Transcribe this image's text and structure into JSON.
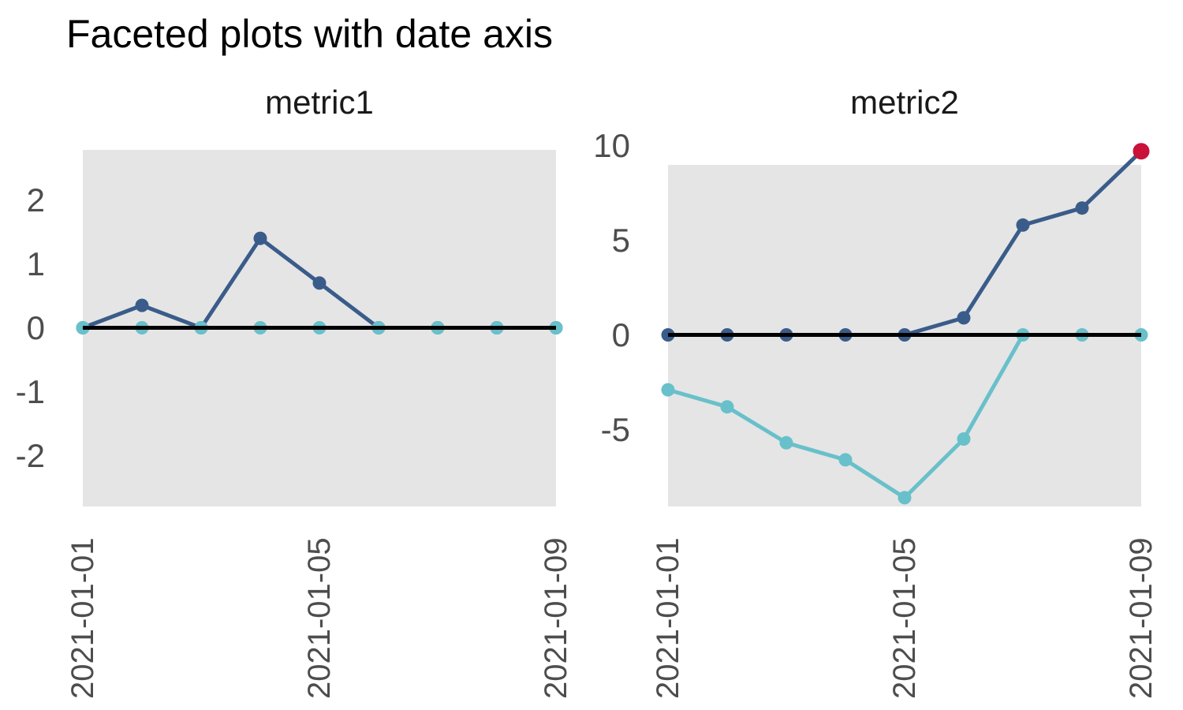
{
  "title": "Faceted plots with date axis",
  "colors": {
    "navy": "#3a5c8a",
    "teal": "#68c0ca",
    "red": "#c9113a",
    "panel_background": "#e5e5e5",
    "zero_line": "#000000",
    "axis_text": "#4d4d4d",
    "facet_title_text": "#1a1a1a",
    "title_text": "#000000",
    "figure_background": "#ffffff"
  },
  "chart_data": [
    {
      "type": "line",
      "facet": "metric1",
      "x": [
        "2021-01-01",
        "2021-01-02",
        "2021-01-03",
        "2021-01-04",
        "2021-01-05",
        "2021-01-06",
        "2021-01-07",
        "2021-01-08",
        "2021-01-09"
      ],
      "x_tick_labels": [
        "2021-01-01",
        "2021-01-05",
        "2021-01-09"
      ],
      "x_tick_indices": [
        0,
        4,
        8
      ],
      "y_ticks": [
        2,
        1,
        0,
        -1,
        -2
      ],
      "ylim": [
        -2.8,
        2.8
      ],
      "grid": false,
      "legend_position": "none",
      "zero_line": true,
      "series": [
        {
          "name": "metric1-line",
          "color_key": "navy",
          "values": [
            0,
            0.35,
            0,
            1.4,
            0.7,
            0,
            0,
            0,
            0
          ]
        },
        {
          "name": "metric1-baseline-points",
          "color_key": "teal",
          "values": [
            0,
            0,
            0,
            0,
            0,
            0,
            0,
            0,
            0
          ]
        }
      ]
    },
    {
      "type": "line",
      "facet": "metric2",
      "x": [
        "2021-01-01",
        "2021-01-02",
        "2021-01-03",
        "2021-01-04",
        "2021-01-05",
        "2021-01-06",
        "2021-01-07",
        "2021-01-08",
        "2021-01-09"
      ],
      "x_tick_labels": [
        "2021-01-01",
        "2021-01-05",
        "2021-01-09"
      ],
      "x_tick_indices": [
        0,
        4,
        8
      ],
      "y_ticks": [
        10,
        5,
        0,
        -5
      ],
      "ylim": [
        -8.96,
        8.96
      ],
      "grid": false,
      "legend_position": "none",
      "zero_line": true,
      "series": [
        {
          "name": "metric2-positive-line",
          "color_key": "navy",
          "values": [
            0,
            0,
            0,
            0,
            0,
            0.9,
            5.8,
            6.7,
            9.7
          ],
          "highlight_last_color_key": "red"
        },
        {
          "name": "metric2-negative-line",
          "color_key": "teal",
          "values": [
            -2.9,
            -3.8,
            -5.7,
            -6.6,
            -8.6,
            -5.5,
            0,
            0,
            0
          ]
        }
      ]
    }
  ]
}
